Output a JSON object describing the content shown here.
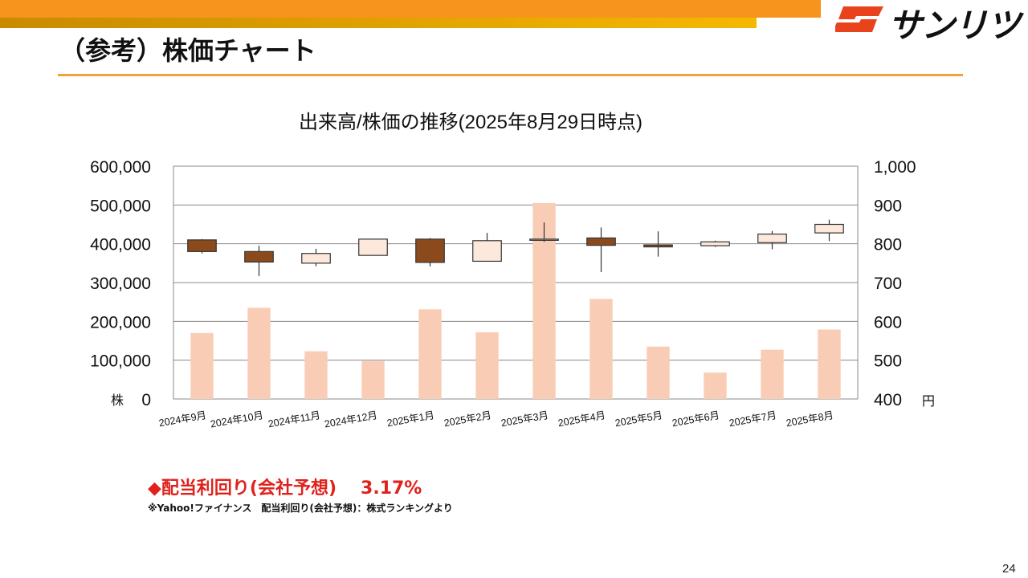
{
  "slide": {
    "title": "（参考）株価チャート",
    "logo_text": "サンリツ",
    "page_number": "24",
    "brand_color": "#f7941d",
    "logo_icon": "sanritsu-logo-icon"
  },
  "chart_data": {
    "type": "candlestick-with-volume-bar",
    "title": "出来高/株価の推移(2025年8月29日時点)",
    "categories": [
      "2024年9月",
      "2024年10月",
      "2024年11月",
      "2024年12月",
      "2025年1月",
      "2025年2月",
      "2025年3月",
      "2025年4月",
      "2025年5月",
      "2025年6月",
      "2025年7月",
      "2025年8月"
    ],
    "volume": {
      "unit_label": "株",
      "values": [
        170000,
        235000,
        123000,
        98000,
        231000,
        172000,
        505000,
        258000,
        135000,
        68000,
        127000,
        179000
      ],
      "color": "#f9cdb5"
    },
    "price": {
      "unit_label": "円",
      "candles": [
        {
          "open": 810,
          "high": 812,
          "low": 775,
          "close": 780
        },
        {
          "open": 780,
          "high": 795,
          "low": 717,
          "close": 753
        },
        {
          "open": 750,
          "high": 787,
          "low": 742,
          "close": 775
        },
        {
          "open": 770,
          "high": 812,
          "low": 770,
          "close": 812
        },
        {
          "open": 812,
          "high": 815,
          "low": 742,
          "close": 752
        },
        {
          "open": 755,
          "high": 828,
          "low": 755,
          "close": 808
        },
        {
          "open": 812,
          "high": 855,
          "low": 805,
          "close": 812
        },
        {
          "open": 815,
          "high": 842,
          "low": 727,
          "close": 796
        },
        {
          "open": 797,
          "high": 832,
          "low": 767,
          "close": 792
        },
        {
          "open": 795,
          "high": 808,
          "low": 792,
          "close": 805
        },
        {
          "open": 803,
          "high": 833,
          "low": 786,
          "close": 825
        },
        {
          "open": 828,
          "high": 862,
          "low": 807,
          "close": 850
        }
      ],
      "up_color": "#fde9dc",
      "down_color": "#8b4a1c"
    },
    "y_left": {
      "ticks": [
        "600,000",
        "500,000",
        "400,000",
        "300,000",
        "200,000",
        "100,000",
        "0"
      ],
      "range": [
        0,
        600000
      ]
    },
    "y_right": {
      "ticks": [
        "1,000",
        "900",
        "800",
        "700",
        "600",
        "500",
        "400"
      ],
      "range": [
        400,
        1000
      ]
    },
    "grid": true,
    "legend": "none"
  },
  "dividend": {
    "label": "◆配当利回り(会社予想)",
    "value": "3.17%",
    "note": "※Yahoo!ファイナンス　配当利回り(会社予想)：株式ランキングより"
  }
}
